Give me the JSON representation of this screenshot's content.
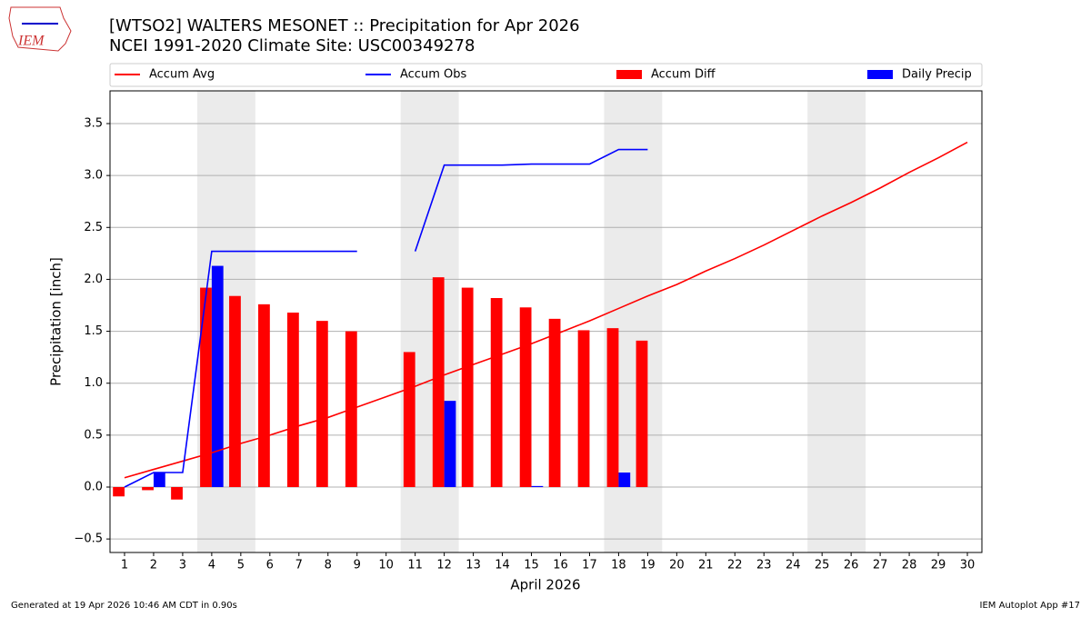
{
  "chart_data": {
    "type": "bar-line",
    "title": "[WTSO2] WALTERS MESONET :: Precipitation for Apr 2026",
    "subtitle": "NCEI 1991-2020 Climate Site: USC00349278",
    "logo_text": "IEM",
    "x_label": "April 2026",
    "y_label": "Precipitation [inch]",
    "footer_left": "Generated at 19 Apr 2026 10:46 AM CDT in 0.90s",
    "footer_right": "IEM Autoplot App #17",
    "x": [
      1,
      2,
      3,
      4,
      5,
      6,
      7,
      8,
      9,
      10,
      11,
      12,
      13,
      14,
      15,
      16,
      17,
      18,
      19,
      20,
      21,
      22,
      23,
      24,
      25,
      26,
      27,
      28,
      29,
      30
    ],
    "xlim": [
      0.5,
      30.5
    ],
    "xticks": [
      1,
      2,
      3,
      4,
      5,
      6,
      7,
      8,
      9,
      10,
      11,
      12,
      13,
      14,
      15,
      16,
      17,
      18,
      19,
      20,
      21,
      22,
      23,
      24,
      25,
      26,
      27,
      28,
      29,
      30
    ],
    "ylim": [
      -0.63,
      3.815
    ],
    "yticks": [
      {
        "value": -0.5,
        "label": "−0.5"
      },
      {
        "value": 0,
        "label": "0.0"
      },
      0.5,
      {
        "value": 1,
        "label": "1.0"
      },
      1.5,
      {
        "value": 2,
        "label": "2.0"
      },
      2.5,
      {
        "value": 3,
        "label": "3.0"
      },
      3.5
    ],
    "grid": true,
    "shaded_spans": [
      [
        3.5,
        5.5
      ],
      [
        10.5,
        12.5
      ],
      [
        17.5,
        19.5
      ],
      [
        24.5,
        26.5
      ]
    ],
    "series": [
      {
        "name": "Accum Avg",
        "kind": "line",
        "color": "#ff0000",
        "values": [
          0.09,
          0.17,
          0.25,
          0.33,
          0.42,
          0.5,
          0.59,
          0.67,
          0.77,
          0.87,
          0.97,
          1.08,
          1.18,
          1.28,
          1.38,
          1.49,
          1.6,
          1.72,
          1.84,
          1.95,
          2.08,
          2.2,
          2.33,
          2.47,
          2.61,
          2.74,
          2.88,
          3.03,
          3.17,
          3.32
        ]
      },
      {
        "name": "Accum Obs",
        "kind": "line",
        "color": "#0000ff",
        "values": [
          0.0,
          0.14,
          0.14,
          2.27,
          2.27,
          2.27,
          2.27,
          2.27,
          2.27,
          null,
          2.27,
          3.1,
          3.1,
          3.1,
          3.11,
          3.11,
          3.11,
          3.25,
          3.25,
          null,
          null,
          null,
          null,
          null,
          null,
          null,
          null,
          null,
          null,
          null
        ]
      },
      {
        "name": "Accum Diff",
        "kind": "bar",
        "color": "#ff0000",
        "values": [
          -0.09,
          -0.03,
          -0.12,
          1.92,
          1.84,
          1.76,
          1.68,
          1.6,
          1.5,
          null,
          1.3,
          2.02,
          1.92,
          1.82,
          1.73,
          1.62,
          1.51,
          1.53,
          1.41,
          null,
          null,
          null,
          null,
          null,
          null,
          null,
          null,
          null,
          null,
          null
        ]
      },
      {
        "name": "Daily Precip",
        "kind": "bar",
        "color": "#0000ff",
        "values": [
          0,
          0.14,
          0,
          2.13,
          0,
          0,
          0,
          0,
          0,
          null,
          0,
          0.83,
          0,
          0,
          0.01,
          0,
          0,
          0.14,
          0,
          null,
          null,
          null,
          null,
          null,
          null,
          null,
          null,
          null,
          null,
          null
        ]
      }
    ]
  }
}
